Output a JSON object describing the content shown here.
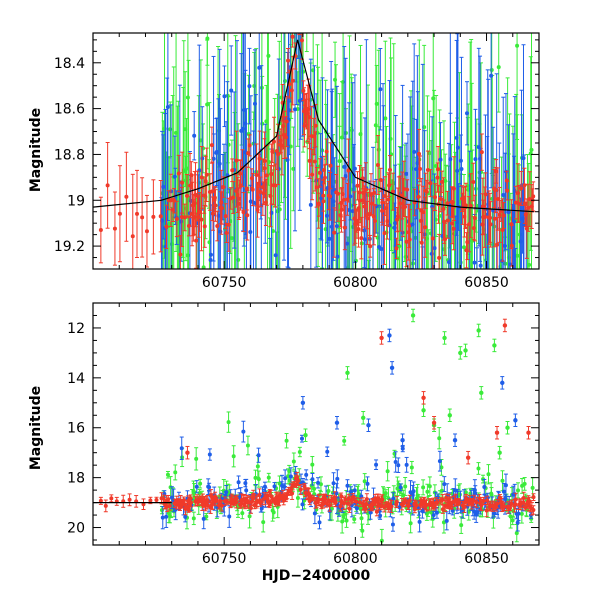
{
  "figure": {
    "xlabel": "HJD−2400000"
  },
  "colors": {
    "red": "#f03a2a",
    "blue": "#1f5ee8",
    "green": "#3aeb3a",
    "axis": "#000000",
    "trend": "#000000"
  },
  "chart_data": [
    {
      "id": "top",
      "type": "scatter",
      "title": "",
      "xlabel": "",
      "ylabel": "Magnitude",
      "xlim": [
        60700,
        60870
      ],
      "ylim": [
        19.3,
        18.27
      ],
      "y_inverted": true,
      "x_ticks": [
        60750,
        60800,
        60850
      ],
      "x_tick_labels": [
        "60750",
        "60800",
        "60850"
      ],
      "y_ticks": [
        18.4,
        18.6,
        18.8,
        19,
        19.2
      ],
      "y_tick_labels": [
        "18.4",
        "18.6",
        "18.8",
        "19",
        "19.2"
      ],
      "series_colors": [
        "#f03a2a",
        "#1f5ee8",
        "#3aeb3a"
      ],
      "trend": {
        "x": [
          60700,
          60726,
          60740,
          60755,
          60770,
          60778,
          60786,
          60800,
          60820,
          60840,
          60868
        ],
        "y": [
          19.03,
          19.0,
          18.95,
          18.88,
          18.72,
          18.3,
          18.65,
          18.9,
          19.0,
          19.03,
          19.05
        ]
      },
      "grid": false,
      "legend": "none"
    },
    {
      "id": "bottom",
      "type": "scatter",
      "title": "",
      "xlabel": "HJD−2400000",
      "ylabel": "Magnitude",
      "xlim": [
        60700,
        60870
      ],
      "ylim": [
        20.7,
        11.0
      ],
      "y_inverted": true,
      "x_ticks": [
        60750,
        60800,
        60850
      ],
      "x_tick_labels": [
        "60750",
        "60800",
        "60850"
      ],
      "y_ticks": [
        12,
        14,
        16,
        18,
        20
      ],
      "y_tick_labels": [
        "12",
        "14",
        "16",
        "18",
        "20"
      ],
      "series_colors": [
        "#f03a2a",
        "#1f5ee8",
        "#3aeb3a"
      ],
      "outliers": {
        "red": [
          [
            60810,
            12.4
          ],
          [
            60826,
            14.8
          ],
          [
            60830,
            15.8
          ],
          [
            60843,
            17.2
          ],
          [
            60854,
            16.2
          ],
          [
            60857,
            11.9
          ],
          [
            60866,
            16.2
          ],
          [
            60736,
            17.0
          ]
        ],
        "blue": [
          [
            60780,
            15.0
          ],
          [
            60793,
            15.8
          ],
          [
            60805,
            15.9
          ],
          [
            60813,
            12.3
          ],
          [
            60814,
            13.6
          ],
          [
            60818,
            16.5
          ],
          [
            60838,
            16.5
          ],
          [
            60856,
            14.2
          ],
          [
            60861,
            15.7
          ]
        ],
        "green": [
          [
            60781,
            16.3
          ],
          [
            60797,
            13.8
          ],
          [
            60803,
            15.6
          ],
          [
            60822,
            11.5
          ],
          [
            60826,
            15.3
          ],
          [
            60830,
            15.9
          ],
          [
            60834,
            12.4
          ],
          [
            60836,
            15.5
          ],
          [
            60840,
            13.0
          ],
          [
            60842,
            12.9
          ],
          [
            60847,
            12.1
          ],
          [
            60853,
            12.7
          ],
          [
            60855,
            17.0
          ],
          [
            60858,
            16.0
          ],
          [
            60848,
            14.6
          ]
        ]
      },
      "grid": false,
      "legend": "none"
    }
  ]
}
